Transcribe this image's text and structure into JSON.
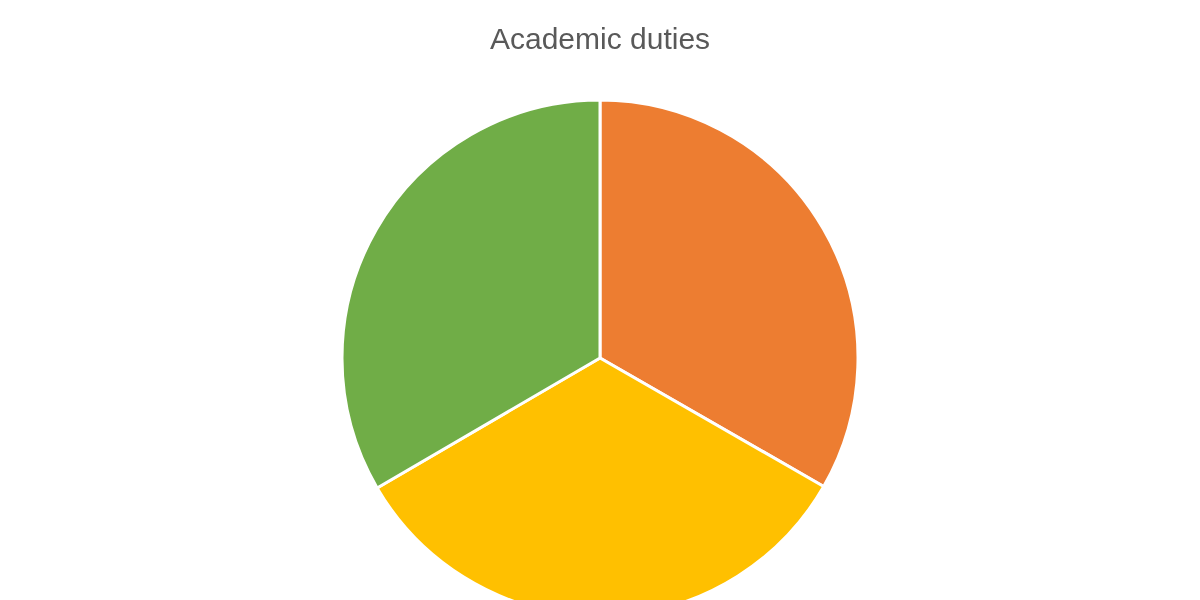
{
  "chart_data": {
    "type": "pie",
    "title": "Academic duties",
    "categories": [
      null,
      null,
      null
    ],
    "values": [
      33.3,
      33.3,
      33.4
    ],
    "colors": [
      "#ed7d31",
      "#ffc000",
      "#70ad47"
    ]
  }
}
